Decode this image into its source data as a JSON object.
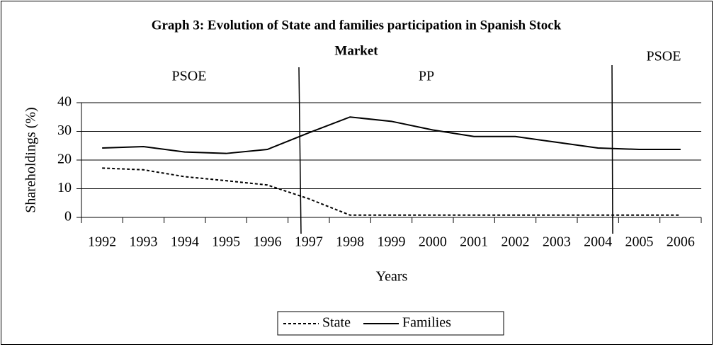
{
  "chart_data": {
    "type": "line",
    "title": [
      "Graph 3: Evolution of State and families participation in Spanish Stock",
      "Market"
    ],
    "annotations": [
      "PSOE",
      "PP",
      "PSOE"
    ],
    "x_label": "Years",
    "y_label": "Shareholdings (%)",
    "categories": [
      "1992",
      "1993",
      "1994",
      "1995",
      "1996",
      "1997",
      "1998",
      "1999",
      "2000",
      "2001",
      "2002",
      "2003",
      "2004",
      "2005",
      "2006"
    ],
    "series": [
      {
        "name": "State",
        "color": "#000000",
        "dash": true,
        "values": [
          17.2,
          16.6,
          14.2,
          12.8,
          11.3,
          6.5,
          0.8,
          0.8,
          0.8,
          0.8,
          0.8,
          0.8,
          0.8,
          0.8,
          0.8
        ]
      },
      {
        "name": "Families",
        "color": "#000000",
        "dash": false,
        "values": [
          24.2,
          24.7,
          22.8,
          22.3,
          23.7,
          29.5,
          35,
          33.5,
          30.5,
          28.2,
          28.2,
          26.2,
          24.2,
          23.7,
          23.7
        ]
      }
    ],
    "ylim": [
      0,
      40
    ],
    "yticks": [
      0,
      10,
      20,
      30,
      40
    ],
    "grid": true,
    "legend": "bottom"
  }
}
